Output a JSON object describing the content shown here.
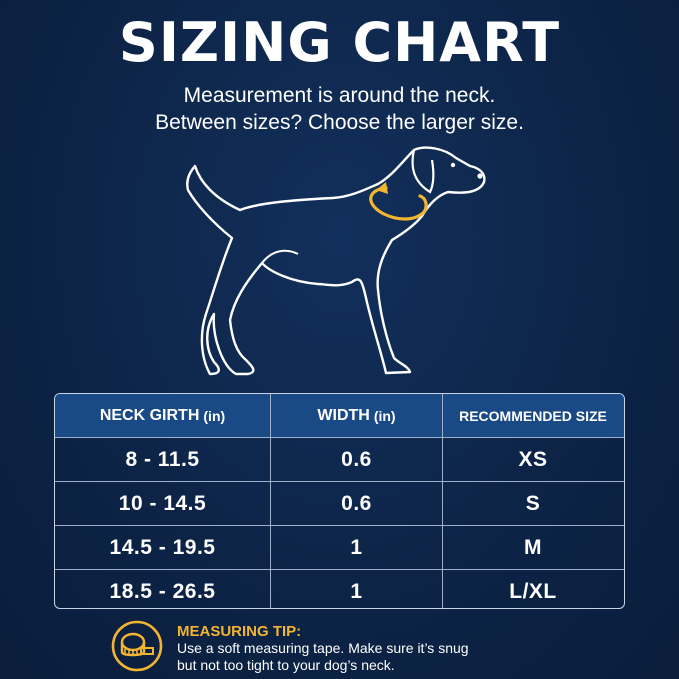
{
  "title": "SIZING CHART",
  "subtitle_line1": "Measurement is around the neck.",
  "subtitle_line2": "Between sizes? Choose the larger size.",
  "colors": {
    "background": "#0d2447",
    "accent": "#f2b531",
    "header_row": "#1a4a86"
  },
  "illustration": {
    "icon": "dog-outline-icon",
    "highlight": "neck-measuring-arrow"
  },
  "table": {
    "headers": [
      {
        "label": "NECK GIRTH",
        "unit": "(in)"
      },
      {
        "label": "WIDTH",
        "unit": "(in)"
      },
      {
        "label": "RECOMMENDED SIZE",
        "unit": ""
      }
    ],
    "rows": [
      [
        "8 - 11.5",
        "0.6",
        "XS"
      ],
      [
        "10 - 14.5",
        "0.6",
        "S"
      ],
      [
        "14.5 - 19.5",
        "1",
        "M"
      ],
      [
        "18.5 - 26.5",
        "1",
        "L/XL"
      ]
    ]
  },
  "tip": {
    "icon": "measuring-tape-icon",
    "title": "MEASURING TIP:",
    "line1": "Use a soft measuring tape. Make sure it’s snug",
    "line2": "but not too tight to your dog’s neck."
  }
}
